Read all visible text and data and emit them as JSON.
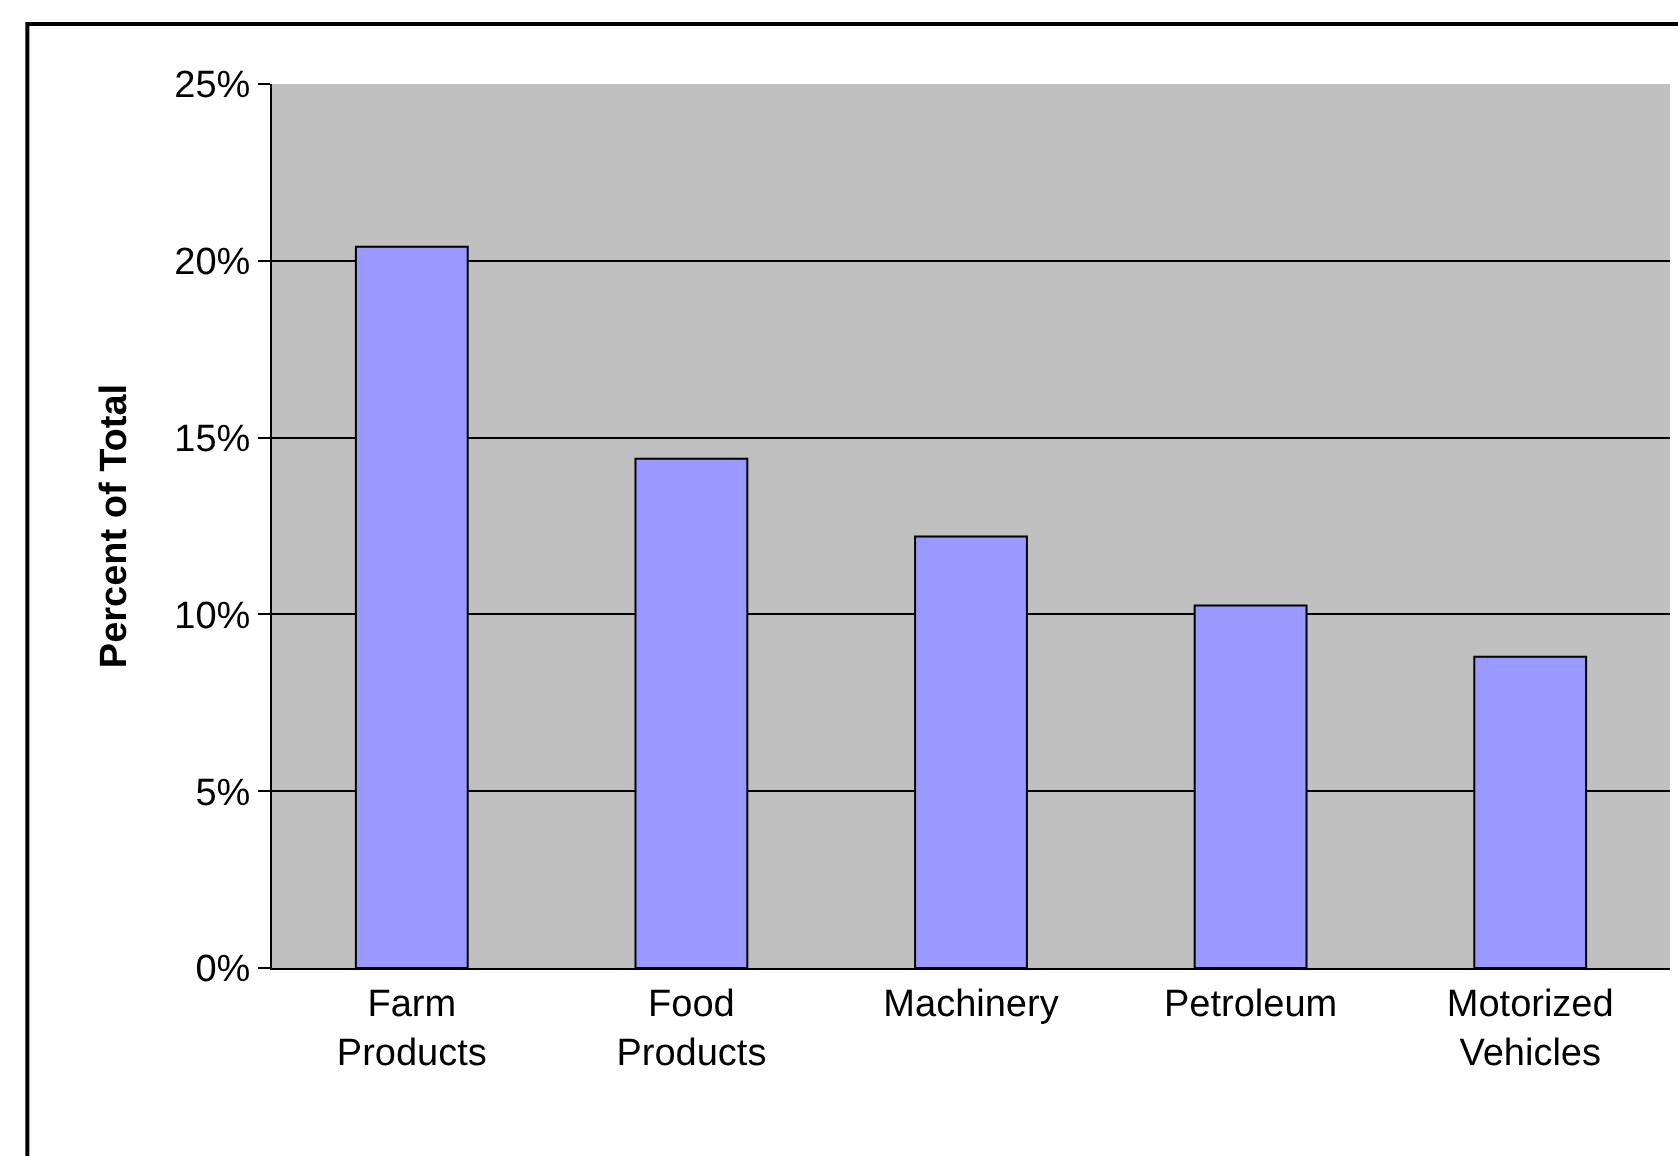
{
  "chart_data": {
    "type": "bar",
    "ylabel": "Percent of Total",
    "categories": [
      "Farm Products",
      "Food Products",
      "Machinery",
      "Petroleum",
      "Motorized Vehicles"
    ],
    "values": [
      20.4,
      14.4,
      12.2,
      10.25,
      8.8
    ],
    "color": "#9999ff",
    "ylim": [
      0,
      25
    ],
    "yticks": [
      {
        "value": 0,
        "label": "0%"
      },
      {
        "value": 5,
        "label": "5%"
      },
      {
        "value": 10,
        "label": "10%"
      },
      {
        "value": 15,
        "label": "15%"
      },
      {
        "value": 20,
        "label": "20%"
      },
      {
        "value": 25,
        "label": "25%"
      }
    ],
    "grid": "y"
  }
}
